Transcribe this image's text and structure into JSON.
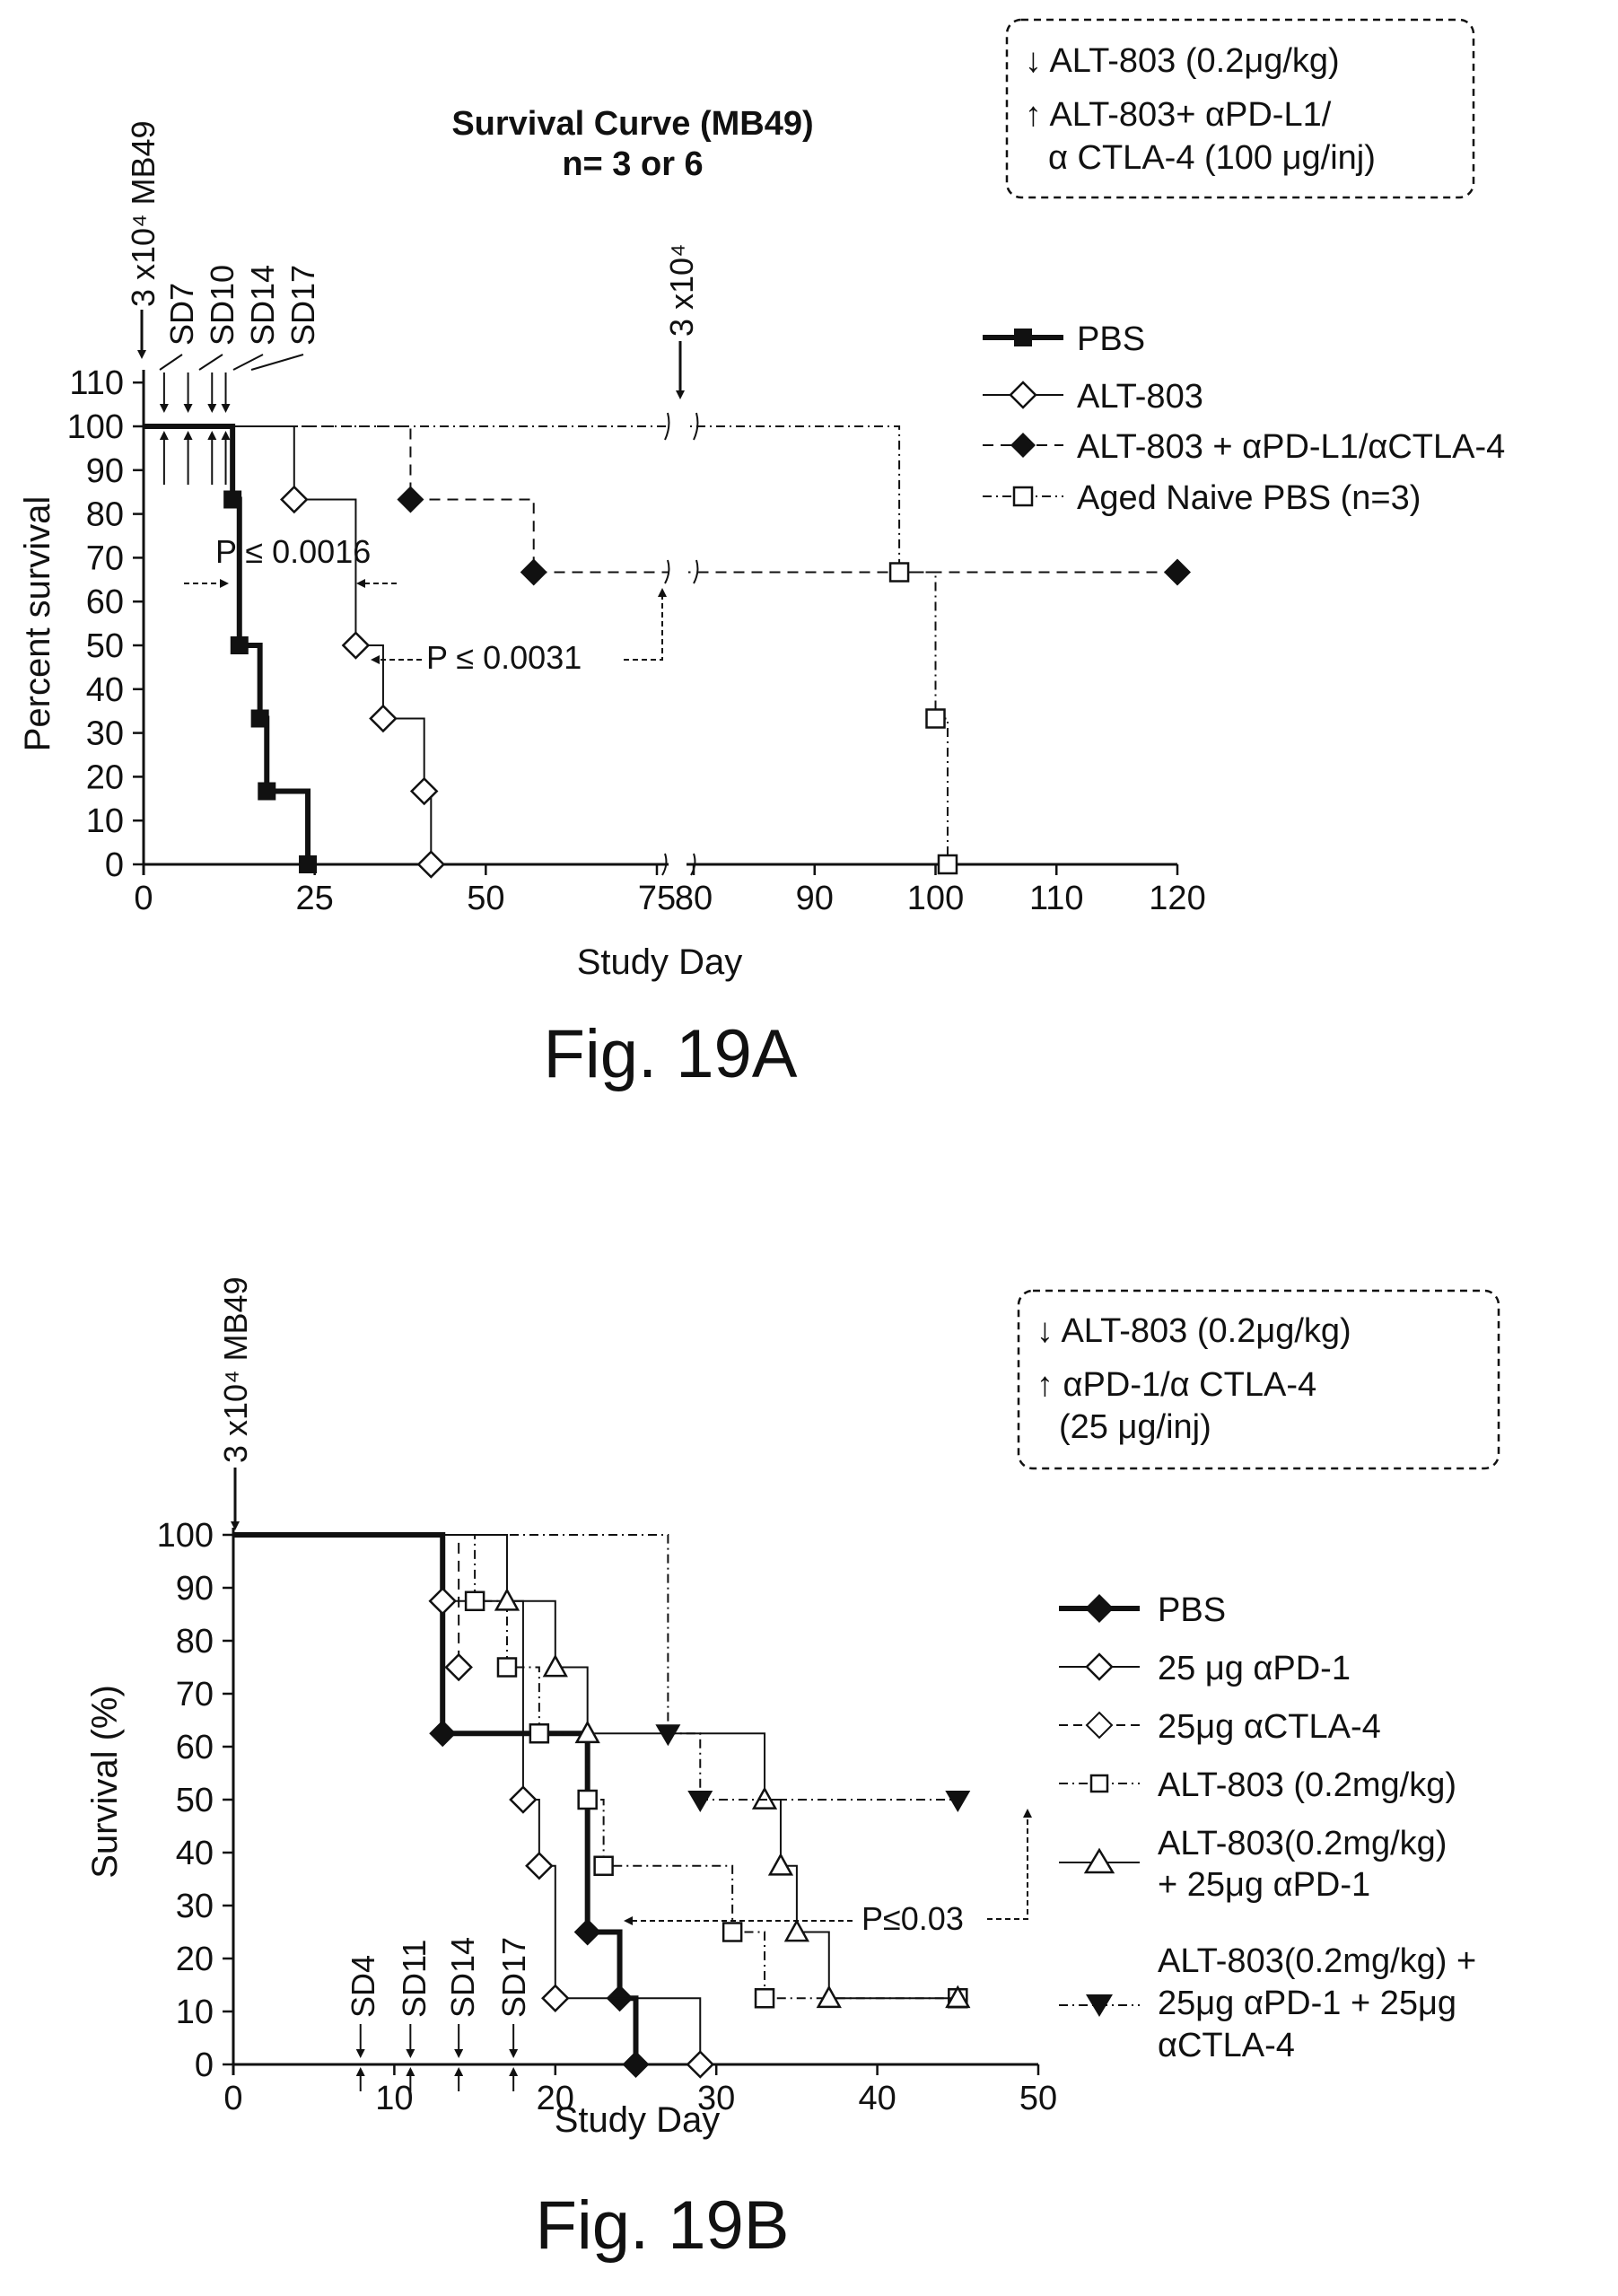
{
  "figures": [
    {
      "caption": "Fig. 19A",
      "title_lines": [
        "Survival Curve (MB49)",
        "n= 3 or 6"
      ],
      "treatment_box": [
        "↓ ALT-803 (0.2μg/kg)",
        "↑ ALT-803+ αPD-L1/",
        "α CTLA-4 (100 μg/inj)"
      ],
      "arrow_annotations": [
        "3 x10⁴ MB49",
        "SD7",
        "SD10",
        "SD14",
        "SD17",
        "3 x10⁴"
      ],
      "p_values": [
        "P ≤ 0.0016",
        "P ≤ 0.0031"
      ],
      "legend": [
        "PBS",
        "ALT-803",
        "ALT-803 + αPD-L1/αCTLA-4",
        "Aged Naive PBS (n=3)"
      ]
    },
    {
      "caption": "Fig. 19B",
      "treatment_box": [
        "↓ ALT-803 (0.2μg/kg)",
        "↑ αPD-1/α CTLA-4",
        "(25 μg/inj)"
      ],
      "arrow_annotations": [
        "3 x10⁴ MB49",
        "SD4",
        "SD11",
        "SD14",
        "SD17"
      ],
      "p_values": [
        "P≤0.03"
      ],
      "legend": [
        "PBS",
        "25 μg αPD-1",
        "25μg αCTLA-4",
        "ALT-803 (0.2mg/kg)",
        "ALT-803(0.2mg/kg)",
        "+ 25μg αPD-1",
        "ALT-803(0.2mg/kg) +",
        "25μg αPD-1 + 25μg",
        "αCTLA-4"
      ]
    }
  ],
  "chart_data": [
    {
      "type": "line",
      "subtype": "kaplan-meier",
      "title": "Survival Curve (MB49)",
      "subtitle": "n= 3 or 6",
      "xlabel": "Study Day",
      "ylabel": "Percent survival",
      "x_ticks": [
        "0",
        "25",
        "50",
        "75",
        "80",
        "90",
        "100",
        "110",
        "120"
      ],
      "x_axis_break": [
        75,
        80
      ],
      "xlim": [
        0,
        120
      ],
      "y_ticks": [
        "0",
        "10",
        "20",
        "30",
        "40",
        "50",
        "60",
        "70",
        "80",
        "90",
        "100",
        "110"
      ],
      "ylim": [
        0,
        110
      ],
      "legend_position": "top-right",
      "series": [
        {
          "name": "PBS",
          "marker": "filled-square",
          "line": "solid-thick",
          "x": [
            0,
            13,
            14,
            17,
            18,
            24
          ],
          "y": [
            100,
            83.3,
            50,
            33.3,
            16.7,
            0
          ]
        },
        {
          "name": "ALT-803",
          "marker": "open-diamond",
          "line": "solid",
          "x": [
            0,
            22,
            31,
            35,
            41,
            42
          ],
          "y": [
            100,
            83.3,
            50,
            33.3,
            16.7,
            0
          ]
        },
        {
          "name": "ALT-803 + αPD-L1/αCTLA-4",
          "marker": "filled-diamond",
          "line": "dashed",
          "x": [
            0,
            39,
            57,
            120
          ],
          "y": [
            100,
            83.3,
            66.7,
            66.7
          ]
        },
        {
          "name": "Aged Naive PBS (n=3)",
          "marker": "open-square",
          "line": "dash-dot",
          "x": [
            0,
            97,
            100,
            101
          ],
          "y": [
            100,
            66.7,
            33.3,
            0
          ]
        }
      ]
    },
    {
      "type": "line",
      "subtype": "kaplan-meier",
      "xlabel": "Study Day",
      "ylabel": "Survival (%)",
      "x_ticks": [
        "0",
        "10",
        "20",
        "30",
        "40",
        "50"
      ],
      "xlim": [
        0,
        50
      ],
      "y_ticks": [
        "0",
        "10",
        "20",
        "30",
        "40",
        "50",
        "60",
        "70",
        "80",
        "90",
        "100"
      ],
      "ylim": [
        0,
        100
      ],
      "legend_position": "right",
      "series": [
        {
          "name": "PBS",
          "marker": "filled-diamond",
          "line": "solid-thick",
          "x": [
            0,
            13,
            22,
            24,
            25
          ],
          "y": [
            100,
            62.5,
            25,
            12.5,
            0
          ]
        },
        {
          "name": "25 μg αPD-1",
          "marker": "open-diamond",
          "line": "solid",
          "x": [
            0,
            13,
            18,
            19,
            20,
            29
          ],
          "y": [
            100,
            87.5,
            50,
            37.5,
            12.5,
            0
          ]
        },
        {
          "name": "25μg αCTLA-4",
          "marker": "open-diamond",
          "line": "dashed",
          "x": [
            0,
            14
          ],
          "y": [
            100,
            75
          ]
        },
        {
          "name": "ALT-803 (0.2mg/kg)",
          "marker": "open-square",
          "line": "dash-dot",
          "x": [
            0,
            15,
            17,
            19,
            22,
            23,
            31,
            33,
            45
          ],
          "y": [
            100,
            87.5,
            75,
            62.5,
            50,
            37.5,
            25,
            12.5,
            12.5
          ]
        },
        {
          "name": "ALT-803(0.2mg/kg) + 25μg αPD-1",
          "marker": "open-triangle",
          "line": "solid",
          "x": [
            0,
            17,
            20,
            22,
            33,
            34,
            35,
            37,
            45
          ],
          "y": [
            100,
            87.5,
            75,
            62.5,
            50,
            37.5,
            25,
            12.5,
            12.5
          ]
        },
        {
          "name": "ALT-803(0.2mg/kg) + 25μg αPD-1 + 25μg αCTLA-4",
          "marker": "filled-triangle-down",
          "line": "dash-dot",
          "x": [
            0,
            27,
            29,
            45
          ],
          "y": [
            100,
            62.5,
            50,
            50
          ]
        }
      ]
    }
  ]
}
